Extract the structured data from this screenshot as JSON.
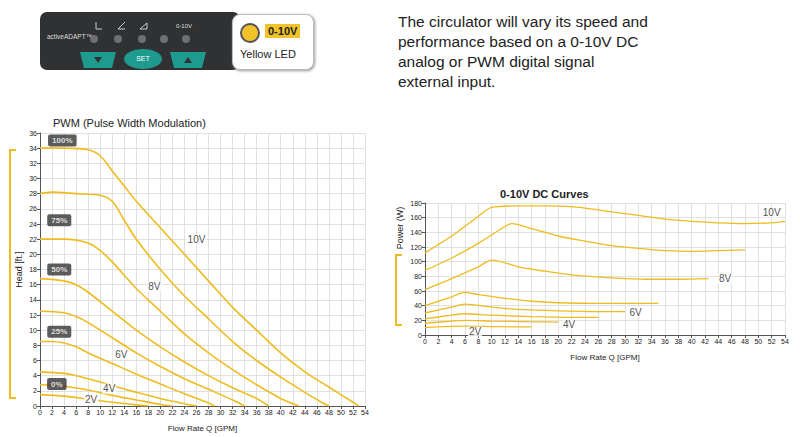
{
  "panel": {
    "brand": "activeADAPT™",
    "led_label": "0-10V",
    "button": "SET"
  },
  "callout": {
    "badge": "0-10V",
    "caption": "Yellow LED"
  },
  "description": {
    "lines": [
      "The circulator will vary its speed and",
      "performance based on a 0-10V DC",
      "analog or PWM digital signal",
      "external input."
    ]
  },
  "chart_data": [
    {
      "type": "line",
      "title": "PWM (Pulse Width Modulation)",
      "x_label": "Flow Rate Q [GPM]",
      "y_label": "Head [ft.]",
      "xlim": [
        0,
        54
      ],
      "xticks": [
        0,
        2,
        4,
        6,
        8,
        10,
        12,
        14,
        16,
        18,
        20,
        22,
        24,
        26,
        28,
        30,
        32,
        34,
        36,
        38,
        40,
        42,
        44,
        46,
        48,
        50,
        52,
        54
      ],
      "ylim": [
        0,
        36
      ],
      "yticks": [
        0,
        2,
        4,
        6,
        8,
        10,
        12,
        14,
        16,
        18,
        20,
        22,
        24,
        26,
        28,
        30,
        32,
        34,
        36
      ],
      "grid": true,
      "color": "#efbc1f",
      "series": [
        {
          "x": [
            0,
            4,
            8,
            10,
            12,
            14,
            16,
            20,
            24,
            28,
            32,
            36,
            40,
            44,
            48,
            52,
            53
          ],
          "values": [
            34,
            34,
            33.8,
            33,
            31,
            29,
            27,
            23.5,
            20,
            16.5,
            13,
            10,
            7,
            4.5,
            2.5,
            0.5,
            0
          ]
        },
        {
          "x": [
            0,
            2,
            6,
            10,
            12,
            14,
            16,
            20,
            24,
            28,
            32,
            36,
            40,
            44,
            47,
            48
          ],
          "values": [
            28,
            28.2,
            28,
            27.8,
            27,
            24.5,
            22,
            18,
            14.5,
            11.5,
            8.5,
            6,
            3.8,
            1.8,
            0.4,
            0
          ]
        },
        {
          "x": [
            0,
            4,
            8,
            10,
            12,
            16,
            20,
            24,
            28,
            32,
            36,
            40,
            43
          ],
          "values": [
            22,
            22,
            21.5,
            20.5,
            19,
            15.5,
            12.5,
            9.5,
            7,
            4.8,
            2.8,
            1,
            0
          ]
        },
        {
          "x": [
            0,
            4,
            6,
            8,
            12,
            16,
            20,
            24,
            28,
            32,
            36,
            38
          ],
          "values": [
            16.8,
            16.5,
            16,
            15,
            12.5,
            10,
            7.8,
            5.8,
            4,
            2.4,
            1,
            0
          ]
        },
        {
          "x": [
            0,
            4,
            6,
            8,
            12,
            16,
            20,
            24,
            28,
            32,
            34
          ],
          "values": [
            12.5,
            12.3,
            11.8,
            11,
            9,
            7,
            5.2,
            3.6,
            2.2,
            0.8,
            0
          ]
        },
        {
          "x": [
            0,
            2,
            4,
            6,
            8,
            12,
            16,
            20,
            24,
            28,
            29
          ],
          "values": [
            8.5,
            8.5,
            8.3,
            7.8,
            7,
            5.6,
            4.2,
            2.9,
            1.6,
            0.4,
            0
          ]
        },
        {
          "x": [
            0,
            4,
            6,
            8,
            12,
            16,
            20,
            24,
            26
          ],
          "values": [
            4.5,
            4.3,
            4,
            3.6,
            2.7,
            1.8,
            1,
            0.3,
            0
          ]
        },
        {
          "x": [
            0,
            4,
            8,
            12,
            16,
            20,
            22
          ],
          "values": [
            2.8,
            2.6,
            2.1,
            1.4,
            0.8,
            0.2,
            0
          ]
        },
        {
          "x": [
            0,
            4,
            8,
            12,
            16,
            18
          ],
          "values": [
            1.5,
            1.3,
            0.9,
            0.5,
            0.15,
            0
          ]
        }
      ],
      "annotations": [
        {
          "text": "10V",
          "x": 26,
          "y": 22
        },
        {
          "text": "8V",
          "x": 19,
          "y": 15.8
        },
        {
          "text": "6V",
          "x": 13.5,
          "y": 6.8
        },
        {
          "text": "4V",
          "x": 11.5,
          "y": 2.3
        },
        {
          "text": "2V",
          "x": 8.5,
          "y": 0.8
        }
      ],
      "level_labels": [
        {
          "text": "100%",
          "x": 3.7,
          "y": 35
        },
        {
          "text": "75%",
          "x": 3.2,
          "y": 24.5
        },
        {
          "text": "50%",
          "x": 3.2,
          "y": 18
        },
        {
          "text": "25%",
          "x": 3.2,
          "y": 9.8
        },
        {
          "text": "0%",
          "x": 2.8,
          "y": 2.9
        }
      ]
    },
    {
      "type": "line",
      "title": "0-10V DC Curves",
      "x_label": "Flow Rate Q [GPM]",
      "y_label": "Power (W)",
      "xlim": [
        0,
        54
      ],
      "xticks": [
        0,
        2,
        4,
        6,
        8,
        10,
        12,
        14,
        16,
        18,
        20,
        22,
        24,
        26,
        28,
        30,
        32,
        34,
        36,
        38,
        40,
        42,
        44,
        46,
        48,
        50,
        52,
        54
      ],
      "ylim": [
        0,
        180
      ],
      "yticks": [
        0,
        20,
        40,
        60,
        80,
        100,
        120,
        140,
        160,
        180
      ],
      "grid": true,
      "color": "#efbc1f",
      "series": [
        {
          "x": [
            0,
            4,
            8,
            10,
            14,
            18,
            22,
            24,
            28,
            32,
            36,
            40,
            44,
            48,
            52,
            54
          ],
          "values": [
            112,
            135,
            162,
            174,
            176,
            176,
            175,
            173,
            168,
            163,
            158,
            155,
            153,
            152,
            153,
            155
          ]
        },
        {
          "x": [
            0,
            4,
            8,
            12,
            13,
            16,
            20,
            24,
            28,
            32,
            36,
            40,
            44,
            48
          ],
          "values": [
            88,
            105,
            125,
            148,
            152,
            145,
            135,
            128,
            122,
            118,
            115,
            114,
            115,
            116
          ]
        },
        {
          "x": [
            0,
            4,
            8,
            10,
            14,
            18,
            22,
            26,
            30,
            34,
            38,
            42.5
          ],
          "values": [
            62,
            77,
            93,
            102,
            93,
            87,
            82,
            79,
            77,
            76,
            76,
            77
          ]
        },
        {
          "x": [
            0,
            4,
            6,
            8,
            12,
            16,
            20,
            26,
            32,
            35
          ],
          "values": [
            40,
            52,
            58,
            55,
            50,
            46,
            44,
            43,
            43,
            43
          ]
        },
        {
          "x": [
            0,
            4,
            6,
            10,
            14,
            20,
            26,
            30
          ],
          "values": [
            30,
            38,
            42,
            38,
            35,
            33,
            32,
            32
          ]
        },
        {
          "x": [
            0,
            4,
            6,
            10,
            16,
            22,
            26
          ],
          "values": [
            22,
            27,
            29,
            27,
            25,
            24,
            24
          ]
        },
        {
          "x": [
            0,
            4,
            6,
            10,
            16,
            20
          ],
          "values": [
            16,
            19,
            20,
            19,
            18,
            17.5
          ]
        },
        {
          "x": [
            0,
            6,
            10,
            14,
            16
          ],
          "values": [
            10,
            12,
            11.5,
            11,
            11
          ]
        }
      ],
      "annotations": [
        {
          "text": "10V",
          "x": 52,
          "y": 167
        },
        {
          "text": "8V",
          "x": 45,
          "y": 77
        },
        {
          "text": "6V",
          "x": 31.6,
          "y": 31
        },
        {
          "text": "4V",
          "x": 21.6,
          "y": 14
        },
        {
          "text": "2V",
          "x": 7.5,
          "y": 4.5
        }
      ]
    }
  ]
}
